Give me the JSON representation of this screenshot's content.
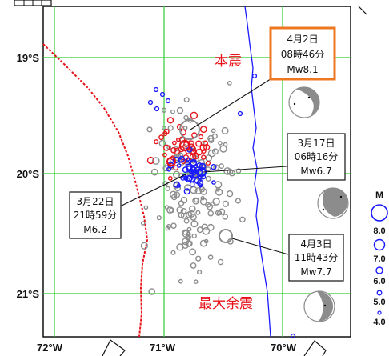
{
  "map": {
    "lat_labels": [
      "19°S",
      "20°S",
      "21°S"
    ],
    "lon_labels": [
      "72°W",
      "71°W",
      "70°W"
    ]
  },
  "callouts": {
    "mainshock": {
      "date": "4月2日",
      "time": "08時46分",
      "mag": "Mw8.1",
      "tag": "本震"
    },
    "mar17": {
      "date": "3月17日",
      "time": "06時16分",
      "mag": "Mw6.7"
    },
    "mar22": {
      "date": "3月22日",
      "time": "21時59分",
      "mag": "M6.2"
    },
    "apr3": {
      "date": "4月3日",
      "time": "11時43分",
      "mag": "Mw7.7",
      "tag": "最大余震"
    }
  },
  "magnitude_legend": {
    "title": "M",
    "levels": [
      "8.0",
      "7.0",
      "6.0",
      "5.0",
      "4.0"
    ]
  },
  "colors": {
    "grid": "#33cc33",
    "coastline": "#1a1aff",
    "trench": "#e8131a",
    "highlight_box": "#ee7722",
    "event_gray": "#8c8c8c",
    "event_red": "#e8131a",
    "event_blue": "#1a1aff"
  }
}
